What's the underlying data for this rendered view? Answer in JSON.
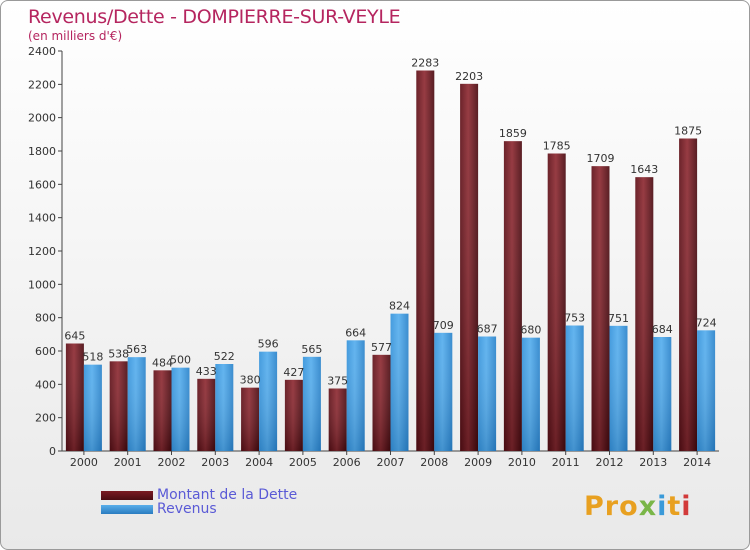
{
  "header": {
    "title": "Revenus/Dette - DOMPIERRE-SUR-VEYLE",
    "subtitle": "(en milliers d'€)"
  },
  "logo": {
    "text": "Proxiti",
    "colors": [
      "#e8a020",
      "#e8a020",
      "#e8a020",
      "#7ab648",
      "#3a9ad9",
      "#e8a020",
      "#d23a3a"
    ]
  },
  "colors": {
    "dette": "#7a1a22",
    "revenus": "#3f9be0",
    "title": "#b5255f",
    "legend_text": "#5a5ad6"
  },
  "chart_data": {
    "type": "bar",
    "title": "Revenus/Dette - DOMPIERRE-SUR-VEYLE",
    "ylabel": "(en milliers d'€)",
    "xlabel": "",
    "ylim": [
      0,
      2400
    ],
    "yticks": [
      0,
      200,
      400,
      600,
      800,
      1000,
      1200,
      1400,
      1600,
      1800,
      2000,
      2200,
      2400
    ],
    "grid": false,
    "legend_position": "bottom-left",
    "categories": [
      "2000",
      "2001",
      "2002",
      "2003",
      "2004",
      "2005",
      "2006",
      "2007",
      "2008",
      "2009",
      "2010",
      "2011",
      "2012",
      "2013",
      "2014"
    ],
    "series": [
      {
        "name": "Montant de la Dette",
        "values": [
          645,
          538,
          484,
          433,
          380,
          427,
          375,
          577,
          2283,
          2203,
          1859,
          1785,
          1709,
          1643,
          1875
        ]
      },
      {
        "name": "Revenus",
        "values": [
          518,
          563,
          500,
          522,
          596,
          565,
          664,
          824,
          709,
          687,
          680,
          753,
          751,
          684,
          724
        ]
      }
    ]
  }
}
